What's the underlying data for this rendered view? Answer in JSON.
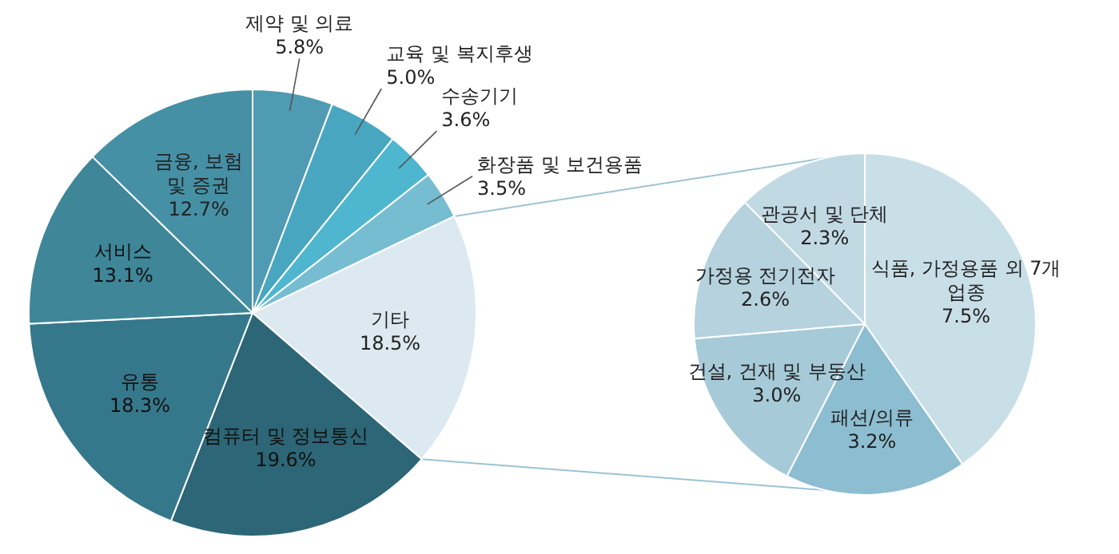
{
  "chart_data": [
    {
      "type": "pie",
      "categories": [
        "제약 및 의료",
        "교육 및 복지후생",
        "수송기기",
        "화장품 및 보건용품",
        "기타",
        "컴퓨터 및 정보통신",
        "유통",
        "서비스",
        "금융, 보험 및 증권"
      ],
      "values": [
        5.8,
        5.0,
        3.6,
        3.5,
        18.5,
        19.6,
        18.3,
        13.1,
        12.7
      ],
      "colors": [
        "#4f9bb3",
        "#48a6c0",
        "#4fb6cf",
        "#76bdd1",
        "#dde9f0",
        "#2d6676",
        "#36788b",
        "#3f8699",
        "#4690a5"
      ],
      "value_labels": [
        "5.8%",
        "5.0%",
        "3.6%",
        "3.5%",
        "18.5%",
        "19.6%",
        "18.3%",
        "13.1%",
        "12.7%"
      ]
    },
    {
      "type": "pie",
      "categories": [
        "식품, 가정용품 외 7개 업종",
        "패션/의류",
        "건설, 건재 및 부동산",
        "가정용 전기전자",
        "관공서 및 단체"
      ],
      "values": [
        7.5,
        3.2,
        3.0,
        2.6,
        2.3
      ],
      "colors": [
        "#c9dfe8",
        "#8dbdd0",
        "#a6cad8",
        "#b5d2de",
        "#c1d9e3"
      ],
      "value_labels": [
        "7.5%",
        "3.2%",
        "3.0%",
        "2.6%",
        "2.3%"
      ]
    }
  ]
}
